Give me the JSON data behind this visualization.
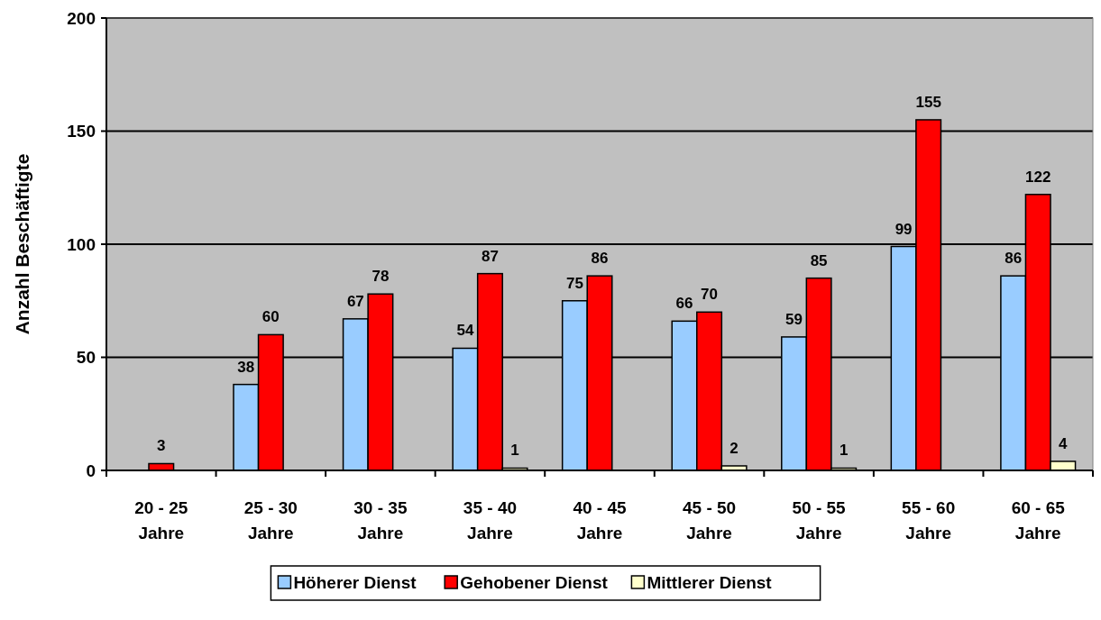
{
  "chart_data": {
    "type": "bar",
    "ylabel": "Anzahl Beschäftigte",
    "categories": [
      "20 - 25 Jahre",
      "25 - 30 Jahre",
      "30 - 35 Jahre",
      "35 - 40 Jahre",
      "40 - 45 Jahre",
      "45 - 50 Jahre",
      "50 - 55 Jahre",
      "55 - 60 Jahre",
      "60 - 65 Jahre"
    ],
    "series": [
      {
        "name": "Höherer Dienst",
        "color": "#99ccff",
        "values": [
          null,
          38,
          67,
          54,
          75,
          66,
          59,
          99,
          86
        ]
      },
      {
        "name": "Gehobener Dienst",
        "color": "#ff0000",
        "values": [
          3,
          60,
          78,
          87,
          86,
          70,
          85,
          155,
          122
        ]
      },
      {
        "name": "Mittlerer Dienst",
        "color": "#ffffcc",
        "values": [
          null,
          null,
          null,
          1,
          null,
          2,
          1,
          null,
          4
        ]
      }
    ],
    "ylim": [
      0,
      200
    ],
    "yticks": [
      0,
      50,
      100,
      150,
      200
    ],
    "grid": "y",
    "legend": "bottom",
    "data_labels": true
  }
}
